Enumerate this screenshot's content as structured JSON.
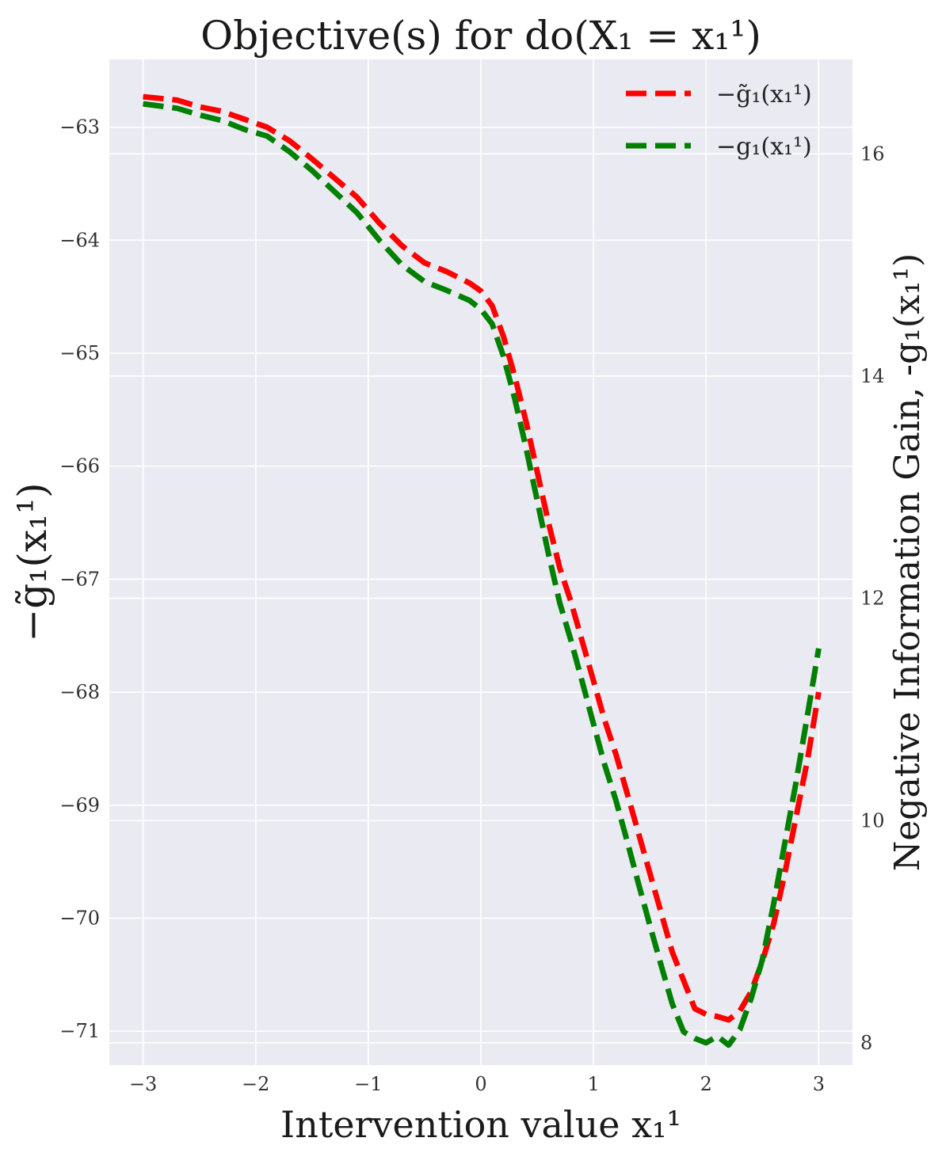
{
  "chart_data": {
    "type": "line",
    "title": "Objective(s) for do(X₁ = x₁¹)",
    "xlabel": "Intervention value x₁¹",
    "ylabel_left": "−g̃₁(x₁¹)",
    "ylabel_right": "Negative Information Gain, -g₁(x₁¹)",
    "xlim": [
      -3.3,
      3.3
    ],
    "ylim_left": [
      -71.3,
      -62.4
    ],
    "ylim_right": [
      7.8,
      16.85
    ],
    "x_ticks": [
      -3,
      -2,
      -1,
      0,
      1,
      2,
      3
    ],
    "x_tick_labels": [
      "−3",
      "−2",
      "−1",
      "0",
      "1",
      "2",
      "3"
    ],
    "y_left_ticks": [
      -63,
      -64,
      -65,
      -66,
      -67,
      -68,
      -69,
      -70,
      -71
    ],
    "y_left_tick_labels": [
      "−63",
      "−64",
      "−65",
      "−66",
      "−67",
      "−68",
      "−69",
      "−70",
      "−71"
    ],
    "y_right_ticks": [
      16,
      14,
      12,
      10,
      8
    ],
    "y_right_tick_labels": [
      "16",
      "14",
      "12",
      "10",
      "8"
    ],
    "grid": true,
    "legend_position": "top-right",
    "series": [
      {
        "name": "−g̃₁(x₁¹)",
        "axis": "left",
        "color": "#ff0000",
        "style": "dashed",
        "x": [
          -3.0,
          -2.7,
          -2.5,
          -2.3,
          -2.1,
          -1.9,
          -1.7,
          -1.5,
          -1.3,
          -1.1,
          -0.9,
          -0.7,
          -0.5,
          -0.3,
          -0.1,
          0.0,
          0.1,
          0.2,
          0.3,
          0.4,
          0.5,
          0.6,
          0.7,
          0.8,
          0.9,
          1.0,
          1.1,
          1.2,
          1.3,
          1.4,
          1.5,
          1.6,
          1.7,
          1.8,
          1.9,
          2.0,
          2.1,
          2.2,
          2.3,
          2.4,
          2.5,
          2.6,
          2.7,
          2.8,
          2.9,
          3.0
        ],
        "y": [
          -62.73,
          -62.76,
          -62.82,
          -62.86,
          -62.93,
          -63.0,
          -63.12,
          -63.28,
          -63.45,
          -63.62,
          -63.85,
          -64.05,
          -64.2,
          -64.28,
          -64.38,
          -64.45,
          -64.58,
          -64.85,
          -65.2,
          -65.6,
          -66.05,
          -66.5,
          -66.9,
          -67.2,
          -67.55,
          -67.9,
          -68.25,
          -68.55,
          -68.9,
          -69.25,
          -69.6,
          -69.95,
          -70.3,
          -70.55,
          -70.8,
          -70.85,
          -70.87,
          -70.9,
          -70.82,
          -70.65,
          -70.38,
          -70.05,
          -69.6,
          -69.1,
          -68.6,
          -68.0
        ]
      },
      {
        "name": "−g₁(x₁¹)",
        "axis": "right",
        "color": "#008000",
        "style": "dashed",
        "x": [
          -3.0,
          -2.7,
          -2.5,
          -2.3,
          -2.1,
          -1.9,
          -1.7,
          -1.5,
          -1.3,
          -1.1,
          -0.9,
          -0.7,
          -0.5,
          -0.3,
          -0.1,
          0.0,
          0.1,
          0.2,
          0.3,
          0.4,
          0.5,
          0.6,
          0.7,
          0.8,
          0.9,
          1.0,
          1.1,
          1.2,
          1.3,
          1.4,
          1.5,
          1.6,
          1.7,
          1.8,
          1.9,
          2.0,
          2.1,
          2.2,
          2.3,
          2.4,
          2.5,
          2.6,
          2.7,
          2.8,
          2.9,
          3.0
        ],
        "y": [
          16.45,
          16.41,
          16.35,
          16.3,
          16.22,
          16.16,
          16.02,
          15.85,
          15.66,
          15.47,
          15.22,
          15.0,
          14.85,
          14.77,
          14.68,
          14.6,
          14.47,
          14.18,
          13.8,
          13.36,
          12.88,
          12.4,
          11.96,
          11.62,
          11.25,
          10.87,
          10.5,
          10.18,
          9.81,
          9.43,
          9.06,
          8.7,
          8.35,
          8.1,
          8.04,
          8.0,
          8.06,
          7.98,
          8.12,
          8.4,
          8.75,
          9.25,
          9.8,
          10.35,
          10.95,
          11.55
        ]
      }
    ]
  }
}
